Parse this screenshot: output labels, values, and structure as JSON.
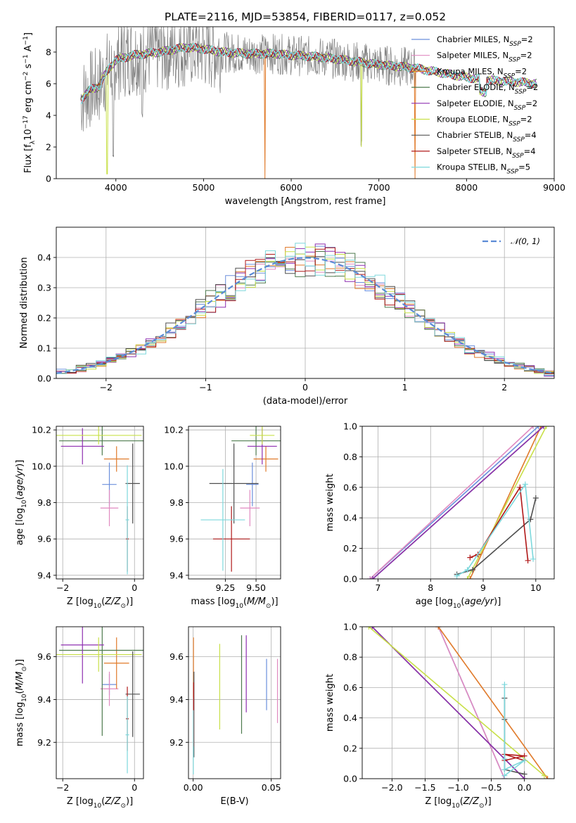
{
  "figure": {
    "title": "PLATE=2116, MJD=53854, FIBERID=0117, z=0.052"
  },
  "colors": {
    "Chabrier MILES": "#6b8fdc",
    "Salpeter MILES": "#e08ac0",
    "Kroupa MILES": "#e07a2a",
    "Chabrier ELODIE": "#4d7a4d",
    "Salpeter ELODIE": "#8e2fb0",
    "Kroupa ELODIE": "#c8e048",
    "Chabrier STELIB": "#505050",
    "Salpeter STELIB": "#b01818",
    "Kroupa STELIB": "#7dd8dc",
    "gaussian": "#5b8bd6",
    "data": "#808080"
  },
  "chart_data": [
    {
      "id": "spectrum",
      "type": "line",
      "title": "PLATE=2116, MJD=53854, FIBERID=0117, z=0.052",
      "xlabel": "wavelength [Angstrom, rest frame]",
      "ylabel": "Flux [f_λ10^-17 erg cm^-2 s^-1 A^-1]",
      "xlim": [
        3320,
        9000
      ],
      "ylim": [
        0,
        9.6
      ],
      "xticks": [
        4000,
        5000,
        6000,
        7000,
        8000,
        9000
      ],
      "yticks": [
        0,
        2,
        4,
        6,
        8
      ],
      "legend_position": "top-right",
      "legend": [
        {
          "name": "Chabrier MILES",
          "nssp": "2"
        },
        {
          "name": "Salpeter MILES",
          "nssp": "2"
        },
        {
          "name": "Kroupa MILES",
          "nssp": "2"
        },
        {
          "name": "Chabrier ELODIE",
          "nssp": "2"
        },
        {
          "name": "Salpeter ELODIE",
          "nssp": "2"
        },
        {
          "name": "Kroupa ELODIE",
          "nssp": "2"
        },
        {
          "name": "Chabrier STELIB",
          "nssp": "4"
        },
        {
          "name": "Salpeter STELIB",
          "nssp": "4"
        },
        {
          "name": "Kroupa STELIB",
          "nssp": "5"
        }
      ],
      "continuum": [
        [
          3600,
          5.0
        ],
        [
          3700,
          5.6
        ],
        [
          3800,
          5.8
        ],
        [
          3900,
          6.8
        ],
        [
          4000,
          7.5
        ],
        [
          4200,
          7.8
        ],
        [
          4500,
          8.0
        ],
        [
          4800,
          8.3
        ],
        [
          5000,
          8.2
        ],
        [
          5200,
          8.0
        ],
        [
          5500,
          7.9
        ],
        [
          5800,
          7.9
        ],
        [
          6000,
          7.8
        ],
        [
          6300,
          7.7
        ],
        [
          6600,
          7.5
        ],
        [
          7000,
          7.2
        ],
        [
          7400,
          7.0
        ],
        [
          7600,
          6.8
        ],
        [
          7800,
          6.6
        ],
        [
          8000,
          6.4
        ],
        [
          8300,
          6.2
        ],
        [
          8600,
          6.1
        ],
        [
          8800,
          6.0
        ]
      ],
      "dips": [
        [
          3930,
          0.2
        ],
        [
          3970,
          1.0
        ],
        [
          4300,
          3.7
        ],
        [
          5180,
          6.6
        ],
        [
          5700,
          0.0
        ],
        [
          6800,
          2.0
        ],
        [
          7400,
          0.0
        ],
        [
          8200,
          5.5
        ],
        [
          8500,
          4.5
        ]
      ]
    },
    {
      "id": "residuals",
      "type": "step-histogram",
      "xlabel": "(data-model)/error",
      "ylabel": "Normed distribution",
      "xlim": [
        -2.5,
        2.5
      ],
      "ylim": [
        0,
        0.5
      ],
      "xticks": [
        -2,
        -1,
        0,
        1,
        2
      ],
      "yticks": [
        0.0,
        0.1,
        0.2,
        0.3,
        0.4
      ],
      "gaussian_label": "𝒩(0, 1)",
      "legend_position": "top-right",
      "bin_width": 0.1
    },
    {
      "id": "age_vs_Z",
      "type": "errorbar",
      "xlabel": "Z [log10(Z/Z⊙)]",
      "ylabel": "age [log10(age/yr)]",
      "xlim": [
        -2.18,
        0.25
      ],
      "ylim": [
        9.38,
        10.22
      ],
      "xticks": [
        -2,
        0
      ],
      "yticks": [
        9.4,
        9.6,
        9.8,
        10.0,
        10.2
      ],
      "points": [
        {
          "series": "Chabrier MILES",
          "x": -0.7,
          "xe": 0.2,
          "y": 9.9,
          "ye": 0.12
        },
        {
          "series": "Salpeter MILES",
          "x": -0.7,
          "xe": 0.25,
          "y": 9.77,
          "ye": 0.1
        },
        {
          "series": "Kroupa MILES",
          "x": -0.5,
          "xe": 0.35,
          "y": 10.04,
          "ye": 0.07
        },
        {
          "series": "Chabrier ELODIE",
          "x": -0.9,
          "xe": 1.2,
          "y": 10.14,
          "ye": 0.08
        },
        {
          "series": "Salpeter ELODIE",
          "x": -1.45,
          "xe": 0.6,
          "y": 10.11,
          "ye": 0.1
        },
        {
          "series": "Kroupa ELODIE",
          "x": -1.0,
          "xe": 1.2,
          "y": 10.17,
          "ye": 0.05
        },
        {
          "series": "Chabrier STELIB",
          "x": -0.05,
          "xe": 0.2,
          "y": 9.905,
          "ye": 0.22
        },
        {
          "series": "Salpeter STELIB",
          "x": -0.2,
          "xe": 0.04,
          "y": 9.6,
          "ye": 0.18
        },
        {
          "series": "Kroupa STELIB",
          "x": -0.2,
          "xe": 0.05,
          "y": 9.705,
          "ye": 0.3
        }
      ]
    },
    {
      "id": "age_vs_mass",
      "type": "errorbar",
      "xlabel": "mass [log10(M/M⊙)]",
      "ylabel": "",
      "xlim": [
        8.95,
        9.7
      ],
      "ylim": [
        9.38,
        10.22
      ],
      "xticks": [
        9.25,
        9.5
      ],
      "yticks": [
        9.4,
        9.6,
        9.8,
        10.0,
        10.2
      ],
      "points": [
        {
          "series": "Chabrier MILES",
          "x": 9.47,
          "xe": 0.05,
          "y": 9.9,
          "ye": 0.12
        },
        {
          "series": "Salpeter MILES",
          "x": 9.45,
          "xe": 0.08,
          "y": 9.77,
          "ye": 0.1
        },
        {
          "series": "Kroupa MILES",
          "x": 9.58,
          "xe": 0.1,
          "y": 10.04,
          "ye": 0.07
        },
        {
          "series": "Chabrier ELODIE",
          "x": 9.5,
          "xe": 0.2,
          "y": 10.14,
          "ye": 0.08
        },
        {
          "series": "Salpeter ELODIE",
          "x": 9.55,
          "xe": 0.12,
          "y": 10.11,
          "ye": 0.1
        },
        {
          "series": "Kroupa ELODIE",
          "x": 9.55,
          "xe": 0.1,
          "y": 10.17,
          "ye": 0.05
        },
        {
          "series": "Chabrier STELIB",
          "x": 9.32,
          "xe": 0.2,
          "y": 9.905,
          "ye": 0.22
        },
        {
          "series": "Salpeter STELIB",
          "x": 9.3,
          "xe": 0.15,
          "y": 9.6,
          "ye": 0.18
        },
        {
          "series": "Kroupa STELIB",
          "x": 9.23,
          "xe": 0.18,
          "y": 9.705,
          "ye": 0.28
        }
      ]
    },
    {
      "id": "mass_weight_vs_age",
      "type": "line",
      "xlabel": "age [log10(age/yr)]",
      "ylabel": "mass weight",
      "xlim": [
        6.7,
        10.35
      ],
      "ylim": [
        0,
        1
      ],
      "xticks": [
        7,
        8,
        9,
        10
      ],
      "yticks": [
        0.0,
        0.2,
        0.4,
        0.6,
        0.8,
        1.0
      ],
      "series": [
        {
          "name": "Chabrier MILES",
          "points": [
            [
              6.85,
              0.0
            ],
            [
              10.05,
              1.0
            ]
          ]
        },
        {
          "name": "Salpeter MILES",
          "points": [
            [
              6.85,
              0.0
            ],
            [
              9.95,
              1.0
            ]
          ]
        },
        {
          "name": "Kroupa MILES",
          "points": [
            [
              8.75,
              0.0
            ],
            [
              10.1,
              1.0
            ]
          ]
        },
        {
          "name": "Chabrier ELODIE",
          "points": [
            [
              6.9,
              0.0
            ],
            [
              10.15,
              1.0
            ]
          ]
        },
        {
          "name": "Salpeter ELODIE",
          "points": [
            [
              6.9,
              0.0
            ],
            [
              10.15,
              1.0
            ]
          ]
        },
        {
          "name": "Kroupa ELODIE",
          "points": [
            [
              8.7,
              0.0
            ],
            [
              10.2,
              1.0
            ]
          ]
        },
        {
          "name": "Chabrier STELIB",
          "points": [
            [
              8.5,
              0.03
            ],
            [
              8.8,
              0.06
            ],
            [
              9.9,
              0.39
            ],
            [
              10.0,
              0.53
            ]
          ]
        },
        {
          "name": "Salpeter STELIB",
          "points": [
            [
              8.75,
              0.14
            ],
            [
              8.9,
              0.16
            ],
            [
              9.7,
              0.6
            ],
            [
              9.85,
              0.12
            ]
          ]
        },
        {
          "name": "Kroupa STELIB",
          "points": [
            [
              8.5,
              0.02
            ],
            [
              8.7,
              0.06
            ],
            [
              9.8,
              0.62
            ],
            [
              9.95,
              0.13
            ]
          ]
        }
      ]
    },
    {
      "id": "mass_vs_Z",
      "type": "errorbar",
      "xlabel": "Z [log10(Z/Z⊙)]",
      "ylabel": "mass [log10(M/M⊙)]",
      "xlim": [
        -2.18,
        0.25
      ],
      "ylim": [
        9.03,
        9.74
      ],
      "xticks": [
        -2,
        0
      ],
      "yticks": [
        9.2,
        9.4,
        9.6
      ],
      "points": [
        {
          "series": "Chabrier MILES",
          "x": -0.7,
          "xe": 0.2,
          "y": 9.47,
          "ye": 0.05
        },
        {
          "series": "Salpeter MILES",
          "x": -0.7,
          "xe": 0.25,
          "y": 9.45,
          "ye": 0.08
        },
        {
          "series": "Kroupa MILES",
          "x": -0.5,
          "xe": 0.35,
          "y": 9.57,
          "ye": 0.12
        },
        {
          "series": "Chabrier ELODIE",
          "x": -0.9,
          "xe": 1.2,
          "y": 9.63,
          "ye": 0.4
        },
        {
          "series": "Salpeter ELODIE",
          "x": -1.45,
          "xe": 0.6,
          "y": 9.655,
          "ye": 0.18
        },
        {
          "series": "Kroupa ELODIE",
          "x": -1.0,
          "xe": 1.2,
          "y": 9.61,
          "ye": 0.08
        },
        {
          "series": "Chabrier STELIB",
          "x": -0.05,
          "xe": 0.2,
          "y": 9.425,
          "ye": 0.2
        },
        {
          "series": "Salpeter STELIB",
          "x": -0.2,
          "xe": 0.04,
          "y": 9.31,
          "ye": 0.15
        },
        {
          "series": "Kroupa STELIB",
          "x": -0.2,
          "xe": 0.05,
          "y": 9.235,
          "ye": 0.18
        }
      ]
    },
    {
      "id": "mass_vs_EBV",
      "type": "errorbar",
      "xlabel": "E(B-V)",
      "ylabel": "",
      "xlim": [
        -0.003,
        0.056
      ],
      "ylim": [
        9.03,
        9.74
      ],
      "xticks": [
        0.0,
        0.05
      ],
      "yticks": [
        9.2,
        9.4,
        9.6
      ],
      "points": [
        {
          "series": "Chabrier MILES",
          "x": 0.047,
          "xe": 0,
          "y": 9.47,
          "ye": 0.12
        },
        {
          "series": "Salpeter MILES",
          "x": 0.054,
          "xe": 0,
          "y": 9.44,
          "ye": 0.15
        },
        {
          "series": "Kroupa MILES",
          "x": 0.0002,
          "xe": 0,
          "y": 9.55,
          "ye": 0.14
        },
        {
          "series": "Chabrier ELODIE",
          "x": 0.031,
          "xe": 0,
          "y": 9.47,
          "ye": 0.23
        },
        {
          "series": "Salpeter ELODIE",
          "x": 0.034,
          "xe": 0,
          "y": 9.52,
          "ye": 0.18
        },
        {
          "series": "Kroupa ELODIE",
          "x": 0.017,
          "xe": 0,
          "y": 9.46,
          "ye": 0.2
        },
        {
          "series": "Chabrier STELIB",
          "x": 0.0005,
          "xe": 0,
          "y": 9.33,
          "ye": 0.2
        },
        {
          "series": "Salpeter STELIB",
          "x": 0.0003,
          "xe": 0,
          "y": 9.33,
          "ye": 0.15
        },
        {
          "series": "Kroupa STELIB",
          "x": 0.0001,
          "xe": 0,
          "y": 9.2,
          "ye": 0.15
        }
      ]
    },
    {
      "id": "mass_weight_vs_Z",
      "type": "line",
      "xlabel": "Z [log10(Z/Z⊙)]",
      "ylabel": "mass weight",
      "xlim": [
        -2.45,
        0.45
      ],
      "ylim": [
        0,
        1
      ],
      "xticks": [
        -2.0,
        -1.5,
        -1.0,
        -0.5,
        0.0
      ],
      "yticks": [
        0.0,
        0.2,
        0.4,
        0.6,
        0.8,
        1.0
      ],
      "series": [
        {
          "name": "Chabrier MILES",
          "points": [
            [
              -1.3,
              1.0
            ],
            [
              -0.3,
              0.0
            ]
          ]
        },
        {
          "name": "Salpeter MILES",
          "points": [
            [
              -1.3,
              1.0
            ],
            [
              -0.3,
              0.0
            ]
          ]
        },
        {
          "name": "Kroupa MILES",
          "points": [
            [
              -1.3,
              1.0
            ],
            [
              0.35,
              0.0
            ]
          ]
        },
        {
          "name": "Chabrier ELODIE",
          "points": [
            [
              -2.3,
              1.0
            ],
            [
              0.0,
              0.0
            ]
          ]
        },
        {
          "name": "Salpeter ELODIE",
          "points": [
            [
              -2.3,
              1.0
            ],
            [
              0.0,
              0.0
            ]
          ]
        },
        {
          "name": "Kroupa ELODIE",
          "points": [
            [
              -2.35,
              1.0
            ],
            [
              0.3,
              0.02
            ]
          ]
        },
        {
          "name": "Chabrier STELIB",
          "points": [
            [
              -0.3,
              0.53
            ],
            [
              -0.3,
              0.39
            ],
            [
              -0.3,
              0.06
            ],
            [
              0.0,
              0.03
            ]
          ]
        },
        {
          "name": "Salpeter STELIB",
          "points": [
            [
              -0.3,
              0.12
            ],
            [
              0.0,
              0.15
            ],
            [
              -0.3,
              0.16
            ],
            [
              0.0,
              0.12
            ]
          ]
        },
        {
          "name": "Kroupa STELIB",
          "points": [
            [
              -0.3,
              0.62
            ],
            [
              -0.3,
              0.13
            ],
            [
              -0.3,
              0.06
            ],
            [
              0.0,
              0.12
            ],
            [
              -0.3,
              0.02
            ]
          ]
        }
      ]
    }
  ]
}
